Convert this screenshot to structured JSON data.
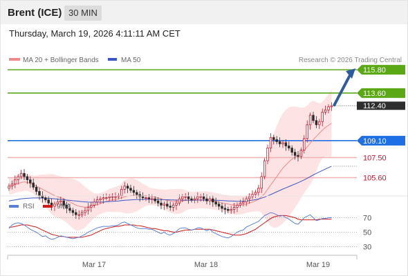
{
  "header": {
    "instrument": "Brent (ICE)",
    "timeframe": "30 MIN"
  },
  "datetime": "Thursday, March 19, 2026 4:11:11 AM CET",
  "legend": {
    "ma20": "MA 20 + Bollinger Bands",
    "ma50": "MA 50",
    "credit": "Research © 2026 Trading Central"
  },
  "rsi_legend": {
    "rsi": "RSI",
    "ma": "9MA"
  },
  "colors": {
    "bull": "#c0182e",
    "bear": "#2a2a2a",
    "band_fill": "#fde3e3",
    "ma20": "#f08a8a",
    "ma50": "#3b56c4",
    "green": "#59a814",
    "blue": "#1e6ee6",
    "red_line": "#f4b0b0",
    "red_text": "#c0182e",
    "price_box": "#2e2e2e",
    "arrow": "#2f5b9e",
    "rsi_line": "#5b7fd6",
    "rsi_ma": "#d01717"
  },
  "chart_data": [
    {
      "type": "candlestick",
      "ylim": [
        104.0,
        116.2
      ],
      "x_ticks": [
        "Mar 17",
        "Mar 18",
        "Mar 19"
      ],
      "levels": [
        {
          "value": 115.8,
          "label": "115.80",
          "color": "green",
          "style": "box"
        },
        {
          "value": 113.6,
          "label": "113.60",
          "color": "green",
          "style": "box"
        },
        {
          "value": 109.1,
          "label": "109.10",
          "color": "blue",
          "style": "box"
        },
        {
          "value": 107.5,
          "label": "107.50",
          "color": "red",
          "style": "text"
        },
        {
          "value": 105.6,
          "label": "105.60",
          "color": "red",
          "style": "text"
        }
      ],
      "last_price": {
        "value": 112.4,
        "label": "112.40"
      },
      "series": {
        "close": [
          104.8,
          105.0,
          105.4,
          105.7,
          106.0,
          105.7,
          105.4,
          105.1,
          104.7,
          104.3,
          103.9,
          103.7,
          103.5,
          103.2,
          102.9,
          103.1,
          103.3,
          103.4,
          103.0,
          102.7,
          102.5,
          102.3,
          102.1,
          102.1,
          102.3,
          102.5,
          102.8,
          103.0,
          103.3,
          103.5,
          103.6,
          103.7,
          103.7,
          103.8,
          103.8,
          103.8,
          103.9,
          104.5,
          104.8,
          104.6,
          104.4,
          104.2,
          104.0,
          103.8,
          103.7,
          103.7,
          103.6,
          103.6,
          103.4,
          103.2,
          103.0,
          103.1,
          102.9,
          102.8,
          103.0,
          103.2,
          103.6,
          103.8,
          103.8,
          103.6,
          103.5,
          103.6,
          103.8,
          103.8,
          103.6,
          103.4,
          103.6,
          103.3,
          103.1,
          102.9,
          102.7,
          102.6,
          102.5,
          102.6,
          102.8,
          103.0,
          103.2,
          103.3,
          103.6,
          103.8,
          104.0,
          104.2,
          104.6,
          105.7,
          107.2,
          108.4,
          109.4,
          109.2,
          109.0,
          108.8,
          108.9,
          108.6,
          108.4,
          108.0,
          107.7,
          107.6,
          108.2,
          109.3,
          110.6,
          111.5,
          111.0,
          110.6,
          110.9,
          111.8,
          112.0,
          112.3,
          112.4
        ],
        "ma20": [
          104.8,
          104.85,
          104.95,
          105.05,
          105.15,
          105.2,
          105.15,
          105.05,
          104.95,
          104.8,
          104.65,
          104.5,
          104.35,
          104.2,
          104.05,
          103.9,
          103.8,
          103.7,
          103.6,
          103.45,
          103.3,
          103.15,
          103.0,
          102.9,
          102.85,
          102.8,
          102.85,
          102.9,
          102.95,
          103.05,
          103.15,
          103.25,
          103.35,
          103.45,
          103.5,
          103.55,
          103.6,
          103.7,
          103.8,
          103.85,
          103.9,
          103.9,
          103.9,
          103.9,
          103.9,
          103.9,
          103.85,
          103.8,
          103.75,
          103.7,
          103.6,
          103.5,
          103.45,
          103.4,
          103.35,
          103.35,
          103.35,
          103.4,
          103.45,
          103.45,
          103.45,
          103.45,
          103.5,
          103.5,
          103.5,
          103.5,
          103.45,
          103.4,
          103.35,
          103.3,
          103.2,
          103.15,
          103.1,
          103.05,
          103.0,
          103.0,
          103.0,
          103.05,
          103.1,
          103.2,
          103.3,
          103.4,
          103.55,
          103.8,
          104.1,
          104.5,
          104.9,
          105.3,
          105.7,
          106.1,
          106.5,
          106.8,
          107.1,
          107.35,
          107.55,
          107.75,
          107.95,
          108.2,
          108.5,
          108.85,
          109.2,
          109.5,
          109.8,
          110.1,
          110.35,
          110.55,
          110.75
        ],
        "ma50": [
          103.4,
          103.45,
          103.5,
          103.55,
          103.6,
          103.63,
          103.65,
          103.67,
          103.68,
          103.68,
          103.68,
          103.67,
          103.66,
          103.64,
          103.62,
          103.6,
          103.57,
          103.54,
          103.51,
          103.48,
          103.45,
          103.42,
          103.39,
          103.36,
          103.33,
          103.31,
          103.29,
          103.28,
          103.28,
          103.28,
          103.29,
          103.3,
          103.32,
          103.34,
          103.36,
          103.38,
          103.4,
          103.43,
          103.46,
          103.48,
          103.5,
          103.52,
          103.53,
          103.54,
          103.55,
          103.56,
          103.56,
          103.56,
          103.55,
          103.54,
          103.53,
          103.52,
          103.51,
          103.5,
          103.49,
          103.48,
          103.47,
          103.47,
          103.47,
          103.47,
          103.47,
          103.47,
          103.48,
          103.48,
          103.48,
          103.48,
          103.48,
          103.47,
          103.46,
          103.45,
          103.44,
          103.42,
          103.4,
          103.39,
          103.38,
          103.37,
          103.37,
          103.38,
          103.4,
          103.43,
          103.47,
          103.52,
          103.58,
          103.66,
          103.76,
          103.88,
          104.0,
          104.13,
          104.26,
          104.39,
          104.52,
          104.64,
          104.76,
          104.88,
          105.0,
          105.12,
          105.25,
          105.39,
          105.54,
          105.7,
          105.86,
          106.0,
          106.14,
          106.28,
          106.42,
          106.55,
          106.68
        ]
      }
    },
    {
      "type": "line",
      "name": "RSI",
      "ylim": [
        20,
        80
      ],
      "y_ticks": [
        70,
        50,
        30
      ],
      "series": [
        {
          "name": "RSI",
          "values": [
            55,
            60,
            62,
            63,
            62,
            60,
            57,
            54,
            52,
            50,
            47,
            44,
            45,
            42,
            40,
            41,
            43,
            45,
            44,
            43,
            42,
            41,
            42,
            43,
            45,
            47,
            50,
            52,
            54,
            56,
            57,
            58,
            58,
            58,
            59,
            59,
            60,
            63,
            64,
            62,
            60,
            58,
            56,
            55,
            55,
            55,
            54,
            54,
            52,
            50,
            48,
            50,
            47,
            46,
            48,
            51,
            55,
            56,
            56,
            54,
            53,
            54,
            56,
            56,
            54,
            52,
            54,
            50,
            48,
            46,
            44,
            43,
            42,
            44,
            47,
            50,
            52,
            53,
            57,
            59,
            61,
            63,
            65,
            69,
            73,
            75,
            77,
            76,
            74,
            72,
            73,
            70,
            68,
            65,
            62,
            61,
            65,
            70,
            72,
            74,
            70,
            66,
            67,
            69,
            69,
            70,
            70
          ]
        },
        {
          "name": "9MA",
          "values": [
            57,
            57,
            58,
            59,
            60,
            60,
            60,
            59,
            58,
            57,
            55,
            53,
            51,
            49,
            47,
            46,
            45,
            44,
            44,
            43,
            43,
            43,
            43,
            43,
            43,
            44,
            45,
            46,
            48,
            50,
            52,
            54,
            55,
            56,
            57,
            58,
            58,
            59,
            60,
            60,
            60,
            60,
            59,
            59,
            58,
            57,
            56,
            55,
            55,
            54,
            53,
            52,
            52,
            51,
            50,
            50,
            51,
            52,
            53,
            53,
            53,
            54,
            54,
            54,
            54,
            54,
            54,
            53,
            52,
            51,
            50,
            49,
            48,
            47,
            46,
            46,
            46,
            47,
            48,
            50,
            52,
            54,
            57,
            60,
            63,
            66,
            69,
            71,
            72,
            73,
            73,
            73,
            72,
            71,
            70,
            68,
            67,
            67,
            67,
            67,
            67,
            67,
            68,
            68,
            68,
            68,
            68
          ]
        }
      ]
    }
  ]
}
